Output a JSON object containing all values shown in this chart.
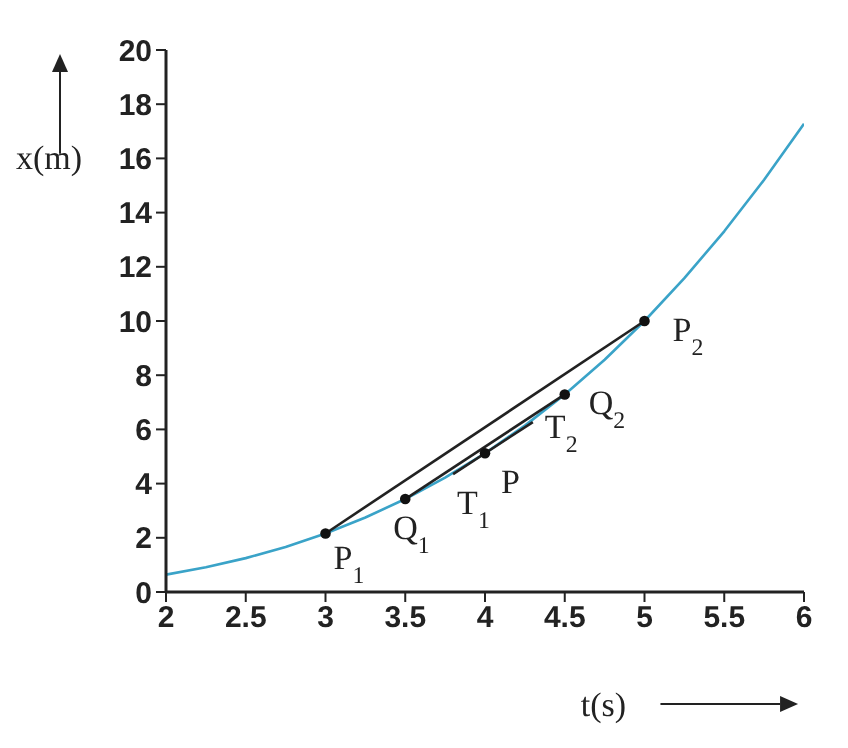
{
  "chart_data": {
    "type": "line",
    "xlabel": "t(s)",
    "ylabel": "x(m)",
    "xlim": [
      2,
      6
    ],
    "xticks": [
      2,
      2.5,
      3,
      3.5,
      4,
      4.5,
      5,
      5.5,
      6
    ],
    "ylim": [
      0,
      20
    ],
    "yticks": [
      0,
      2,
      4,
      6,
      8,
      10,
      12,
      14,
      16,
      18,
      20
    ],
    "grid": false,
    "legend": false,
    "series": [
      {
        "color": "#3aa3c8",
        "x": [
          2,
          2.25,
          2.5,
          2.75,
          3,
          3.25,
          3.5,
          3.75,
          4,
          4.25,
          4.5,
          4.75,
          5,
          5.25,
          5.5,
          5.75,
          6
        ],
        "values": [
          0.64,
          0.91,
          1.25,
          1.66,
          2.16,
          2.75,
          3.43,
          4.22,
          5.12,
          6.14,
          7.29,
          8.57,
          10,
          11.58,
          13.31,
          15.21,
          17.28
        ]
      },
      {
        "color": "#222222",
        "x": [
          3,
          5
        ],
        "values": [
          2.16,
          10
        ]
      },
      {
        "color": "#222222",
        "x": [
          3.5,
          4.5
        ],
        "values": [
          3.43,
          7.29
        ]
      },
      {
        "color": "#222222",
        "x": [
          3.8,
          4.3
        ],
        "values": [
          4.35,
          6.27
        ]
      },
      {
        "type": "scatter",
        "color": "#111111",
        "marker": "circle",
        "x": [
          3,
          3.5,
          4,
          4.5,
          5
        ],
        "values": [
          2.16,
          3.43,
          5.12,
          7.29,
          10
        ]
      }
    ],
    "annotations": [
      {
        "text": "P$_{1}$",
        "x": 3,
        "y": 2.16
      },
      {
        "text": "P$_{2}$",
        "x": 5,
        "y": 10
      },
      {
        "text": "Q$_{1}$",
        "x": 3.5,
        "y": 3.43
      },
      {
        "text": "Q$_{2}$",
        "x": 4.5,
        "y": 7.29
      },
      {
        "text": "P",
        "x": 4,
        "y": 5.12
      },
      {
        "text": "T$_{1}$",
        "x": 3.8,
        "y": 4.35
      },
      {
        "text": "T$_{2}$",
        "x": 4.3,
        "y": 6.27
      }
    ]
  }
}
